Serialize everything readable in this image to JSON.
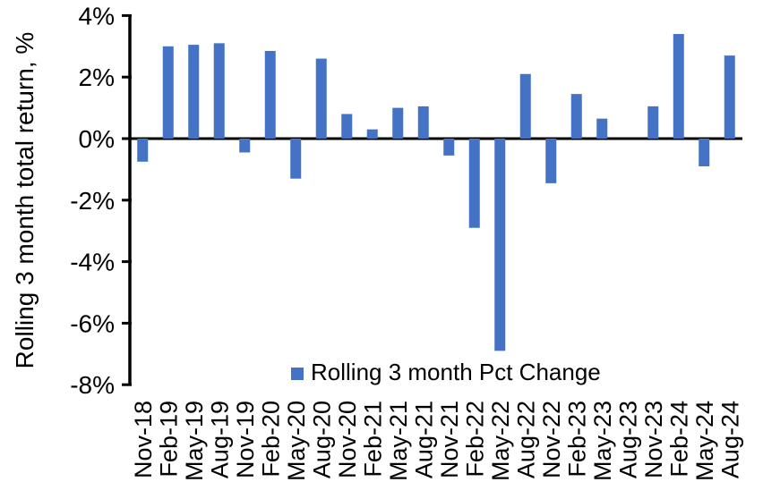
{
  "chart_data": {
    "type": "bar",
    "title": "",
    "xlabel": "",
    "ylabel": "Rolling 3 month total return, %",
    "legend_label": "Rolling 3 month Pct Change",
    "legend_position": "bottom-center-inside-plot",
    "grid": false,
    "bar_color": "#4472C4",
    "axis_color": "#000000",
    "text_color": "#000000",
    "background_color": "#ffffff",
    "ylim": [
      -8,
      4
    ],
    "ytick_step": 2,
    "yticks": [
      {
        "value": 4,
        "label": "4%"
      },
      {
        "value": 2,
        "label": "2%"
      },
      {
        "value": 0,
        "label": "0%"
      },
      {
        "value": -2,
        "label": "-2%"
      },
      {
        "value": -4,
        "label": "-4%"
      },
      {
        "value": -6,
        "label": "-6%"
      },
      {
        "value": -8,
        "label": "-8%"
      }
    ],
    "categories": [
      "Nov-18",
      "Feb-19",
      "May-19",
      "Aug-19",
      "Nov-19",
      "Feb-20",
      "May-20",
      "Aug-20",
      "Nov-20",
      "Feb-21",
      "May-21",
      "Aug-21",
      "Nov-21",
      "Feb-22",
      "May-22",
      "Aug-22",
      "Nov-22",
      "Feb-23",
      "May-23",
      "Aug-23",
      "Nov-23",
      "Feb-24",
      "May-24",
      "Aug-24"
    ],
    "series": [
      {
        "name": "Rolling 3 month Pct Change",
        "values": [
          -0.75,
          3.0,
          3.05,
          3.1,
          -0.45,
          2.85,
          -1.3,
          2.6,
          0.8,
          0.3,
          1.0,
          1.05,
          -0.55,
          -2.9,
          -6.9,
          2.1,
          -1.45,
          1.45,
          0.65,
          0.0,
          1.05,
          3.4,
          -0.9,
          2.7
        ]
      }
    ]
  }
}
